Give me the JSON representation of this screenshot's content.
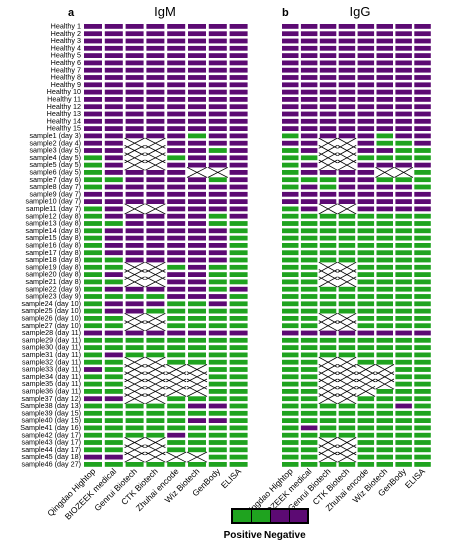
{
  "figure": {
    "legend": {
      "positive_label": "Positive",
      "negative_label": "Negative",
      "positive_color": "#1fa31f",
      "negative_color": "#5c0a73"
    }
  },
  "chart_data": [
    {
      "type": "heatmap",
      "panel_letter": "a",
      "title": "IgM",
      "columns": [
        "Qingdao Hightop",
        "BIOZEEK medical",
        "Genrui Biotech",
        "CTK Biotech",
        "Zhuhai encode",
        "Wiz Biotech",
        "GenBody",
        "ELISA"
      ],
      "rows": [
        "Healthy 1",
        "Healthy 2",
        "Healthy 3",
        "Healthy 4",
        "Healthy 5",
        "Healthy 6",
        "Healthy 7",
        "Healthy 8",
        "Healthy 9",
        "Healthy 10",
        "Healthy 11",
        "Healthy 12",
        "Healthy 13",
        "Healthy 14",
        "Healthy 15",
        "sample1 (day 3)",
        "sample2 (day 4)",
        "sample3 (day 5)",
        "sample4 (day 5)",
        "sample5 (day 5)",
        "sample6 (day 5)",
        "sample7 (day 6)",
        "sample8 (day 7)",
        "sample9 (day 7)",
        "sample10 (day 7)",
        "sample11 (day 7)",
        "sample12 (day 8)",
        "sample13 (day 8)",
        "sample14 (day 8)",
        "sample15 (day 8)",
        "sample16 (day 8)",
        "sample17 (day 8)",
        "sample18 (day 8)",
        "sample19 (day 8)",
        "sample20 (day 8)",
        "sample21 (day 8)",
        "sample22 (day 9)",
        "sample23 (day 9)",
        "sample24 (day 10)",
        "sample25 (day 10)",
        "sample26 (day 10)",
        "sample27 (day 10)",
        "sample28 (day 11)",
        "sample29 (day 11)",
        "sample30 (day 11)",
        "sample31 (day 11)",
        "sample32 (day 11)",
        "sample33 (day 11)",
        "sample34 (day 11)",
        "sample35 (day 11)",
        "sample36 (day 11)",
        "sample37 (day 12)",
        "Sample38 (day 13)",
        "sample39 (day 15)",
        "sample40 (day 15)",
        "Sample41 (day 16)",
        "sample42 (day 17)",
        "sample43 (day 17)",
        "sample44 (day 17)",
        "sample45 (day 18)",
        "sample46 (day 27)"
      ],
      "value_legend": {
        "P": "Positive",
        "N": "Negative",
        "X": "not tested"
      },
      "cells": [
        "NNNNNNNN",
        "NNNNNNNN",
        "NNNNNNNN",
        "NNNNNNNN",
        "NNNNNNNN",
        "NNNNNNNN",
        "NNNNNNNN",
        "NNNNNNNN",
        "NNNNNNNN",
        "NNNNNNNN",
        "NNNNNNNN",
        "NNNNNNNN",
        "NNNNNNNN",
        "NNNNNNNN",
        "NNNNNNNN",
        "NNNNNPNN",
        "NNXXNNNN",
        "NNXXNNPN",
        "PNXXPNNN",
        "PNXXNNNN",
        "PNNNNXXN",
        "PPNNNNPN",
        "PNNNNNNN",
        "NNNNNNNN",
        "NNNNNNNN",
        "PNXXNNNN",
        "PNNNNNPN",
        "PPNNNNPP",
        "PNNNNNNP",
        "PNNNNNNP",
        "PNNNNNNP",
        "PNNNNNNP",
        "PPNNNNNP",
        "PPXXPNPP",
        "PNXXNNPP",
        "PPXXNNPP",
        "PNNNNNPN",
        "PPPPNNNP",
        "PNNNPPNP",
        "PNNPPPPP",
        "PPXXPPPP",
        "PPXXPPPP",
        "NNNNNNNN",
        "PPPPPPPP",
        "PPPPPPPP",
        "PNPPPPPP",
        "PPXXPPPP",
        "NPXXXXPP",
        "PPXXXXPP",
        "PPXXXXPP",
        "PPXXXXPP",
        "NNXXPPPP",
        "PPPPPNNP",
        "PPPPPPPP",
        "PPPPPNNP",
        "PPPPPPPP",
        "PPPPNPPP",
        "PPXXPPPP",
        "PPXXPPPP",
        "NNXXXXPP",
        "PPPPPPPP"
      ]
    },
    {
      "type": "heatmap",
      "panel_letter": "b",
      "title": "IgG",
      "columns": [
        "Qingdao Hightop",
        "BIOZEEK medical",
        "Genrui Biotech",
        "CTK Biotech",
        "Zhuhai encode",
        "Wiz Biotech",
        "GenBody",
        "ELISA"
      ],
      "value_legend": {
        "P": "Positive",
        "N": "Negative",
        "X": "not tested"
      },
      "cells": [
        "NNNNNNNN",
        "NNNNNNNN",
        "NNNNNNNN",
        "NNNNNNNN",
        "NNNNNNNN",
        "NNNNNNNN",
        "NNNNNNNN",
        "NNNNNNNN",
        "NNNNNNNN",
        "NNNNNNNN",
        "NNNNNNNN",
        "NNNNNNNN",
        "NNNNNNNN",
        "NNNNNNNN",
        "NNNNNNNN",
        "PNNNNPNN",
        "NNXXNPPN",
        "PNXXNNPP",
        "PPXXPPPP",
        "PNXXNNNN",
        "PNNNNXXP",
        "PPPNNPPP",
        "PNPNNNNP",
        "NNNNNNNN",
        "NNNNNNNN",
        "PNXXNNNN",
        "PPPPPPPP",
        "PPPPPPPP",
        "PPPPPPPP",
        "PPPPPPPP",
        "PPPPPPPP",
        "PPPPPPPP",
        "PPPPPPPP",
        "PPXXPPPP",
        "PPXXPPPP",
        "PPXXPPPP",
        "PPPPPPPP",
        "PPPPPPPP",
        "PPPPPPPP",
        "PPPPPPPP",
        "PPXXPPPP",
        "PPXXPPPP",
        "NNNNNNNN",
        "PPPPPPPP",
        "PPPPPPPP",
        "PPPPPPPP",
        "PPXXPPPP",
        "PPXXXXPP",
        "PPXXXXPP",
        "PPXXXXPP",
        "PPXXXPPP",
        "PPXXPPPP",
        "PPPPPPNP",
        "PPPPPPPP",
        "PPPPPPPP",
        "PNPPPPPP",
        "PPPPPPPP",
        "PPXXPPPP",
        "PPXXPPPP",
        "PPXXPPPP",
        "PPPPPPPP"
      ]
    }
  ]
}
